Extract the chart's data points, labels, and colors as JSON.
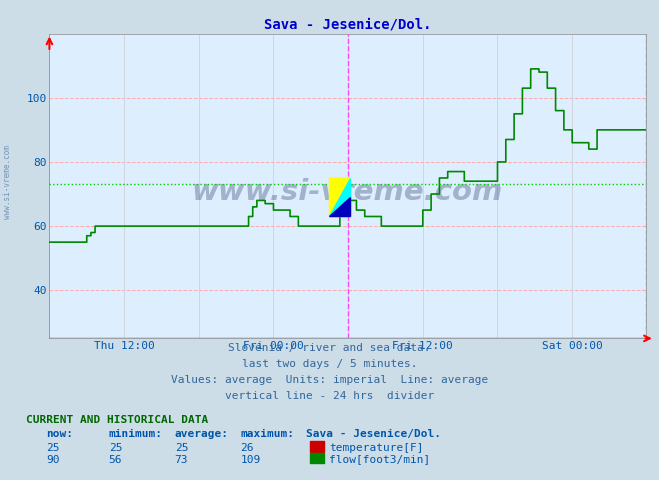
{
  "title": "Sava - Jesenice/Dol.",
  "title_color": "#0000cc",
  "fig_bg_color": "#ccdde8",
  "plot_bg_color": "#ddeeff",
  "ylim": [
    25,
    120
  ],
  "yticks": [
    40,
    60,
    80,
    100
  ],
  "xlim": [
    0,
    575
  ],
  "xtick_positions": [
    72,
    216,
    360,
    504
  ],
  "xtick_labels": [
    "Thu 12:00",
    "Fri 00:00",
    "Fri 12:00",
    "Sat 00:00"
  ],
  "tick_label_color": "#0055aa",
  "grid_h_color": "#ffaaaa",
  "grid_v_color": "#cccccc",
  "vline_color": "#ff44ff",
  "hline_avg_flow": 73,
  "hline_avg_flow_color": "#00cc00",
  "flow_color": "#008800",
  "temp_color": "#cc0000",
  "watermark_text": "www.si-vreme.com",
  "watermark_color": "#1a2a5a",
  "watermark_alpha": 0.3,
  "subtitle_lines": [
    "Slovenia / river and sea data.",
    "last two days / 5 minutes.",
    "Values: average  Units: imperial  Line: average",
    "vertical line - 24 hrs  divider"
  ],
  "subtitle_color": "#336699",
  "table_header": "CURRENT AND HISTORICAL DATA",
  "table_header_color": "#006600",
  "table_col_headers": [
    "now:",
    "minimum:",
    "average:",
    "maximum:",
    "Sava - Jesenice/Dol."
  ],
  "temp_row": [
    "25",
    "25",
    "25",
    "26"
  ],
  "flow_row": [
    "90",
    "56",
    "73",
    "109"
  ],
  "temp_label": "temperature[F]",
  "flow_label": "flow[foot3/min]"
}
